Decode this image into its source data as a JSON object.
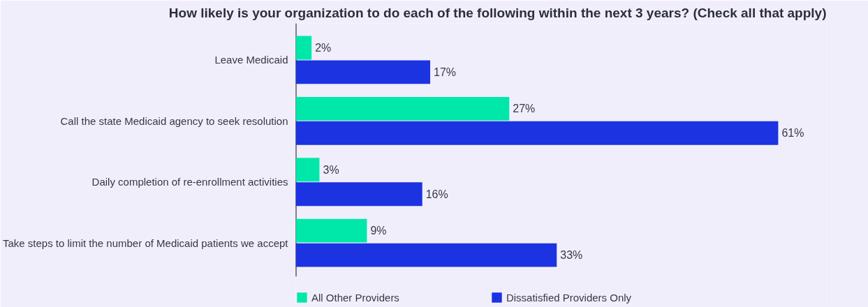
{
  "chart_data": {
    "type": "bar",
    "orientation": "horizontal",
    "title": "How likely is your organization to do each of the following within the next 3 years? (Check all that apply)",
    "categories": [
      "Leave Medicaid",
      "Call the state Medicaid agency to seek resolution",
      "Daily completion of re-enrollment activities",
      "Take steps to limit the number of Medicaid patients we accept"
    ],
    "series": [
      {
        "name": "All Other Providers",
        "color": "#00e8a9",
        "values": [
          2,
          27,
          3,
          9
        ],
        "value_labels": [
          "2%",
          "27%",
          "3%",
          "9%"
        ]
      },
      {
        "name": "Dissatisfied Providers Only",
        "color": "#1b33e0",
        "values": [
          17,
          61,
          16,
          33
        ],
        "value_labels": [
          "17%",
          "61%",
          "16%",
          "33%"
        ]
      }
    ],
    "legend": "bottom",
    "grid": false,
    "tick_labels": "y"
  }
}
